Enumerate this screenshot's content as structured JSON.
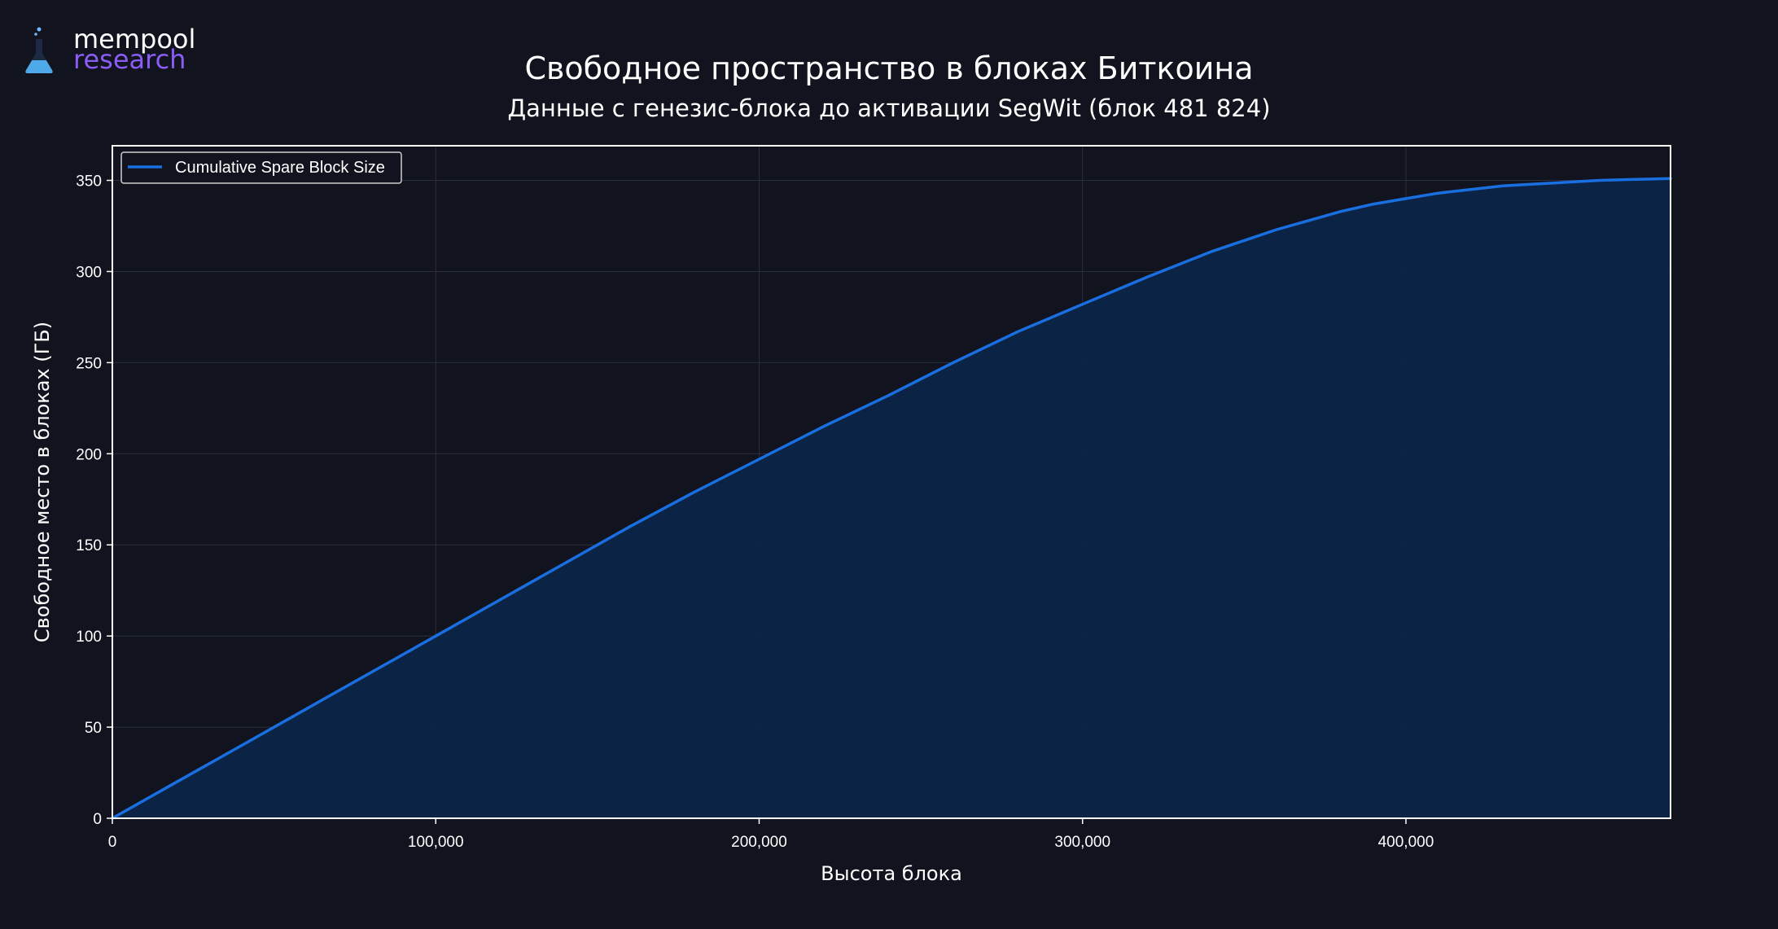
{
  "brand": {
    "name_line1": "mempool",
    "name_line2": "research",
    "logo_icon": "flask-icon",
    "color_primary": "#ffffff",
    "color_secondary": "#8b5cf6"
  },
  "colors": {
    "background": "#11131e",
    "plot_background": "#11131e",
    "grid": "#2a2f40",
    "axis": "#ffffff",
    "line": "#1a6fe0",
    "fill": "#0c2548"
  },
  "chart_data": {
    "type": "area",
    "title": "Свободное пространство в блоках Биткоина",
    "subtitle": "Данные с генезис-блока до активации SegWit (блок 481 824)",
    "xlabel": "Высота блока",
    "ylabel": "Свободное место в блоках (ГБ)",
    "xlim": [
      0,
      481824
    ],
    "ylim": [
      0,
      369
    ],
    "x_ticks": [
      0,
      100000,
      200000,
      300000,
      400000
    ],
    "x_tick_labels": [
      "0",
      "100,000",
      "200,000",
      "300,000",
      "400,000"
    ],
    "y_ticks": [
      0,
      50,
      100,
      150,
      200,
      250,
      300,
      350
    ],
    "y_tick_labels": [
      "0",
      "50",
      "100",
      "150",
      "200",
      "250",
      "300",
      "350"
    ],
    "grid": true,
    "legend_position": "top-left",
    "series": [
      {
        "name": "Cumulative Spare Block Size",
        "x": [
          0,
          20000,
          40000,
          60000,
          80000,
          100000,
          120000,
          140000,
          160000,
          180000,
          200000,
          220000,
          240000,
          260000,
          280000,
          300000,
          320000,
          340000,
          360000,
          370000,
          380000,
          390000,
          400000,
          410000,
          420000,
          430000,
          440000,
          450000,
          460000,
          470000,
          481824
        ],
        "y": [
          0,
          20,
          40,
          60,
          80,
          100,
          120,
          140,
          160,
          179,
          197,
          215,
          232,
          250,
          267,
          282,
          297,
          311,
          323,
          328,
          333,
          337,
          340,
          343,
          345,
          347,
          348,
          349,
          350,
          350.5,
          351
        ]
      }
    ]
  }
}
